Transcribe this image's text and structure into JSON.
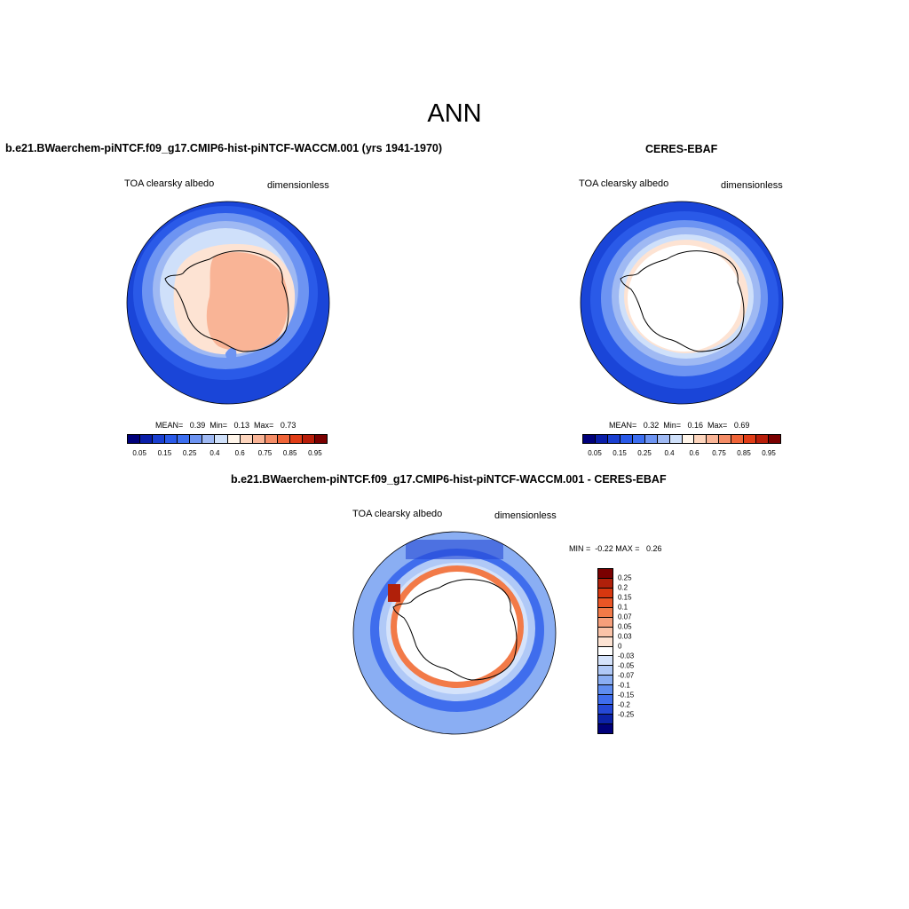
{
  "main_title": "ANN",
  "panels": [
    {
      "title": "b.e21.BWaerchem-piNTCF.f09_g17.CMIP6-hist-piNTCF-WACCM.001 (yrs 1941-1970)",
      "variable": "TOA clearsky albedo",
      "units": "dimensionless",
      "stats": "MEAN=   0.39  Min=   0.13  Max=   0.73"
    },
    {
      "title": "CERES-EBAF",
      "variable": "TOA clearsky albedo",
      "units": "dimensionless",
      "stats": "MEAN=   0.32  Min=   0.16  Max=   0.69"
    },
    {
      "title": "b.e21.BWaerchem-piNTCF.f09_g17.CMIP6-hist-piNTCF-WACCM.001 - CERES-EBAF",
      "variable": "TOA clearsky albedo",
      "units": "dimensionless",
      "stats": "MIN =  -0.22 MAX =   0.26"
    }
  ],
  "abs_colorbar": {
    "colors": [
      "#00007a",
      "#0a1ea8",
      "#1a3fd0",
      "#2a5ae8",
      "#3d6ff0",
      "#6d94f2",
      "#9fb9f3",
      "#cfe0fa",
      "#fff5ea",
      "#fdd5bd",
      "#f9b496",
      "#f48c66",
      "#ef6438",
      "#e03d17",
      "#b81e0a",
      "#7a0000"
    ],
    "labels": [
      "0.05",
      "0.15",
      "0.25",
      "0.4",
      "0.6",
      "0.75",
      "0.85",
      "0.95"
    ]
  },
  "diff_colorbar": {
    "colors": [
      "#7a0000",
      "#b0200a",
      "#d7370f",
      "#ea5525",
      "#f27a48",
      "#f69f7b",
      "#fac3a8",
      "#fde3d3",
      "#ffffff",
      "#d5e3fb",
      "#b0c9f7",
      "#8aaef3",
      "#5f8df0",
      "#3f6ded",
      "#2548d6",
      "#0c22a8",
      "#00007a"
    ],
    "labels": [
      "0.25",
      "0.2",
      "0.15",
      "0.1",
      "0.07",
      "0.05",
      "0.03",
      "0",
      "-0.03",
      "-0.05",
      "-0.07",
      "-0.1",
      "-0.15",
      "-0.2",
      "-0.25"
    ]
  }
}
